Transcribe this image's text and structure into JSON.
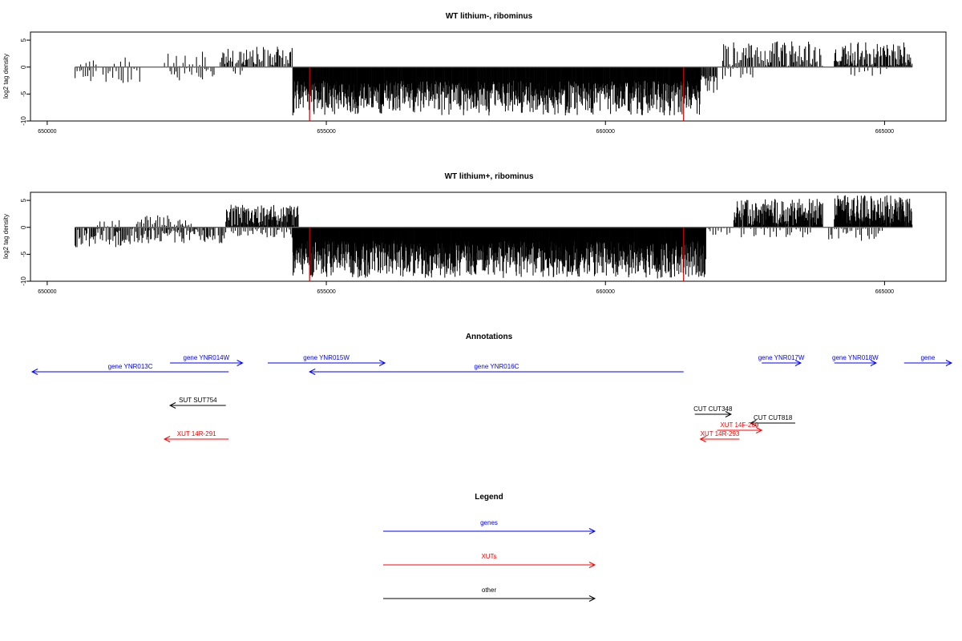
{
  "chart_data": [
    {
      "type": "bar",
      "title": "WT lithium-, ribominus",
      "ylabel": "log2 tag density",
      "xlim": [
        649700,
        666100
      ],
      "ylim": [
        -10,
        6.5
      ],
      "xticks": [
        650000,
        655000,
        660000,
        665000
      ],
      "yticks": [
        5,
        0,
        -5,
        -10
      ],
      "baseline": [
        650500,
        665500
      ],
      "red_markers": [
        654700,
        661400
      ],
      "segments": [
        {
          "x0": 650500,
          "x1": 650900,
          "lo": -3.2,
          "hi": 0.0,
          "step": 40,
          "seed": 11
        },
        {
          "x0": 650600,
          "x1": 650900,
          "lo": 0.0,
          "hi": 2.0,
          "step": 60,
          "seed": 12
        },
        {
          "x0": 651000,
          "x1": 651700,
          "lo": -3.0,
          "hi": 0.0,
          "step": 45,
          "seed": 13
        },
        {
          "x0": 651200,
          "x1": 651500,
          "lo": 0.0,
          "hi": 2.5,
          "step": 110,
          "seed": 14
        },
        {
          "x0": 652200,
          "x1": 653000,
          "lo": -2.5,
          "hi": 0.0,
          "step": 40,
          "seed": 15
        },
        {
          "x0": 652100,
          "x1": 652900,
          "lo": 0.0,
          "hi": 3.2,
          "step": 55,
          "seed": 16
        },
        {
          "x0": 653100,
          "x1": 654400,
          "lo": 0.0,
          "hi": 3.8,
          "step": 22,
          "seed": 17
        },
        {
          "x0": 653300,
          "x1": 653500,
          "lo": -1.5,
          "hi": 0.0,
          "step": 50,
          "seed": 18
        },
        {
          "x0": 654400,
          "x1": 661700,
          "lo": -9.0,
          "hi": -2.5,
          "step": 8,
          "seed": 19
        },
        {
          "x0": 661700,
          "x1": 662000,
          "lo": -5.0,
          "hi": -1.5,
          "step": 15,
          "seed": 20
        },
        {
          "x0": 662100,
          "x1": 662700,
          "lo": -3.0,
          "hi": 0.0,
          "step": 60,
          "seed": 21
        },
        {
          "x0": 662100,
          "x1": 663900,
          "lo": 0.0,
          "hi": 4.8,
          "step": 20,
          "seed": 22
        },
        {
          "x0": 664100,
          "x1": 665500,
          "lo": 0.0,
          "hi": 4.6,
          "step": 13,
          "seed": 23
        },
        {
          "x0": 664400,
          "x1": 665100,
          "lo": -3.0,
          "hi": 0.0,
          "step": 80,
          "seed": 24
        }
      ]
    },
    {
      "type": "bar",
      "title": "WT lithium+, ribominus",
      "ylabel": "log2 tag density",
      "xlim": [
        649700,
        666100
      ],
      "ylim": [
        -10,
        6.5
      ],
      "xticks": [
        650000,
        655000,
        660000,
        665000
      ],
      "yticks": [
        5,
        0,
        -5,
        -10
      ],
      "baseline": [
        650500,
        665500
      ],
      "red_markers": [
        654700,
        661400
      ],
      "segments": [
        {
          "x0": 650500,
          "x1": 651800,
          "lo": -4.0,
          "hi": 0.0,
          "step": 18,
          "seed": 31
        },
        {
          "x0": 650900,
          "x1": 651300,
          "lo": 0.0,
          "hi": 1.5,
          "step": 60,
          "seed": 32
        },
        {
          "x0": 651600,
          "x1": 652600,
          "lo": 0.0,
          "hi": 2.5,
          "step": 30,
          "seed": 33
        },
        {
          "x0": 651800,
          "x1": 653200,
          "lo": -3.2,
          "hi": 0.0,
          "step": 20,
          "seed": 34
        },
        {
          "x0": 653200,
          "x1": 654500,
          "lo": 0.0,
          "hi": 4.2,
          "step": 12,
          "seed": 35
        },
        {
          "x0": 653300,
          "x1": 654400,
          "lo": -2.0,
          "hi": 0.0,
          "step": 35,
          "seed": 36
        },
        {
          "x0": 654400,
          "x1": 661800,
          "lo": -9.5,
          "hi": -2.5,
          "step": 7,
          "seed": 37
        },
        {
          "x0": 661800,
          "x1": 662300,
          "lo": -1.5,
          "hi": 0.0,
          "step": 40,
          "seed": 38
        },
        {
          "x0": 662300,
          "x1": 663900,
          "lo": 0.0,
          "hi": 5.3,
          "step": 9,
          "seed": 39
        },
        {
          "x0": 662400,
          "x1": 663700,
          "lo": -2.0,
          "hi": 0.0,
          "step": 45,
          "seed": 40
        },
        {
          "x0": 664100,
          "x1": 665500,
          "lo": 0.0,
          "hi": 6.0,
          "step": 7,
          "seed": 41
        },
        {
          "x0": 664000,
          "x1": 665000,
          "lo": -2.6,
          "hi": 0.0,
          "step": 35,
          "seed": 42
        }
      ]
    }
  ],
  "annotations": {
    "title": "Annotations",
    "features": [
      {
        "label": "gene YNR013C",
        "x0": 649700,
        "x1": 653250,
        "dir": "-",
        "row": 1,
        "color": "#0000ff"
      },
      {
        "label": "gene YNR014W",
        "x0": 652200,
        "x1": 653500,
        "dir": "+",
        "row": 0,
        "color": "#0000ff"
      },
      {
        "label": "gene YNR015W",
        "x0": 653950,
        "x1": 656050,
        "dir": "+",
        "row": 0,
        "color": "#0000ff"
      },
      {
        "label": "gene YNR016C",
        "x0": 654700,
        "x1": 661400,
        "dir": "-",
        "row": 1,
        "color": "#0000ff"
      },
      {
        "label": "gene YNR017W",
        "x0": 662800,
        "x1": 663500,
        "dir": "+",
        "row": 0,
        "color": "#0000ff"
      },
      {
        "label": "gene YNR018W",
        "x0": 664100,
        "x1": 664850,
        "dir": "+",
        "row": 0,
        "color": "#0000ff"
      },
      {
        "label": "gene",
        "x0": 665350,
        "x1": 666200,
        "dir": "+",
        "row": 0,
        "color": "#0000ff"
      },
      {
        "label": "SUT SUT754",
        "x0": 652200,
        "x1": 653200,
        "dir": "-",
        "row": 2,
        "color": "#000000"
      },
      {
        "label": "CUT CUT348",
        "x0": 661600,
        "x1": 662250,
        "dir": "+",
        "row": 3,
        "color": "#000000"
      },
      {
        "label": "CUT CUT818",
        "x0": 662600,
        "x1": 663400,
        "dir": "-",
        "row": 4,
        "color": "#000000"
      },
      {
        "label": "XUT 14F-269",
        "x0": 662000,
        "x1": 662800,
        "dir": "+",
        "row": 5,
        "color": "#ff0000"
      },
      {
        "label": "XUT 14R-293",
        "x0": 661700,
        "x1": 662400,
        "dir": "-",
        "row": 6,
        "color": "#ff0000"
      },
      {
        "label": "XUT 14R-291",
        "x0": 652100,
        "x1": 653250,
        "dir": "-",
        "row": 6,
        "color": "#ff0000"
      }
    ]
  },
  "legend": {
    "title": "Legend",
    "items": [
      {
        "label": "genes",
        "color": "#0000ff"
      },
      {
        "label": "XUTs",
        "color": "#ff0000"
      },
      {
        "label": "other",
        "color": "#000000"
      }
    ]
  }
}
